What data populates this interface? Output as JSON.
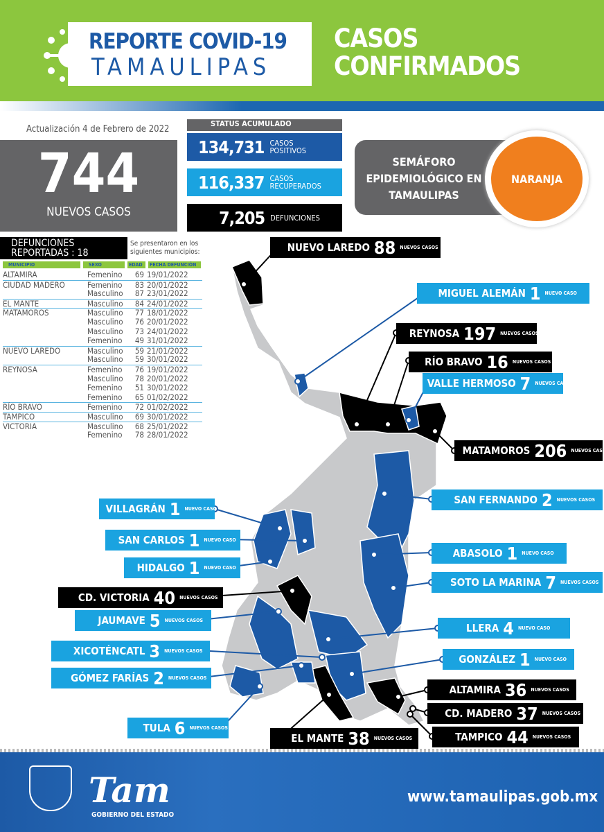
{
  "header": {
    "title_line1": "REPORTE COVID-19",
    "title_line2": "TAMAULIPAS",
    "section": "CASOS CONFIRMADOS"
  },
  "update": "Actualización 4 de Febrero de 2022",
  "new_cases": {
    "value": "744",
    "label": "NUEVOS CASOS"
  },
  "status": {
    "header": "STATUS ACUMULADO",
    "positives": {
      "value": "134,731",
      "label": "CASOS POSITIVOS"
    },
    "recovered": {
      "value": "116,337",
      "label": "CASOS RECUPERADOS"
    },
    "deaths": {
      "value": "7,205",
      "label": "DEFUNCIONES"
    }
  },
  "semaforo": {
    "label": "SEMÁFORO EPIDEMIOLÓGICO EN TAMAULIPAS",
    "level": "NARANJA",
    "color": "#f07f1e"
  },
  "deaths_table": {
    "title": "DEFUNCIONES REPORTADAS : 18",
    "note": "Se presentaron en los siguientes municipios:",
    "columns": [
      "MUNICIPIO",
      "SEXO",
      "EDAD",
      "FECHA DEFUNCIÓN"
    ],
    "rows": [
      [
        "ALTAMIRA",
        "Femenino",
        "69",
        "19/01/2022"
      ],
      [
        "CIUDAD MADERO",
        "Femenino",
        "83",
        "20/01/2022"
      ],
      [
        "",
        "Masculino",
        "87",
        "23/01/2022"
      ],
      [
        "EL MANTE",
        "Masculino",
        "84",
        "24/01/2022"
      ],
      [
        "MATAMOROS",
        "Masculino",
        "77",
        "18/01/2022"
      ],
      [
        "",
        "Masculino",
        "76",
        "20/01/2022"
      ],
      [
        "",
        "Masculino",
        "73",
        "24/01/2022"
      ],
      [
        "",
        "Femenino",
        "49",
        "31/01/2022"
      ],
      [
        "NUEVO LAREDO",
        "Masculino",
        "59",
        "21/01/2022"
      ],
      [
        "",
        "Masculino",
        "59",
        "30/01/2022"
      ],
      [
        "REYNOSA",
        "Femenino",
        "76",
        "19/01/2022"
      ],
      [
        "",
        "Masculino",
        "78",
        "20/01/2022"
      ],
      [
        "",
        "Femenino",
        "51",
        "30/01/2022"
      ],
      [
        "",
        "Femenino",
        "65",
        "01/02/2022"
      ],
      [
        "RÍO BRAVO",
        "Femenino",
        "72",
        "01/02/2022"
      ],
      [
        "TAMPICO",
        "Masculino",
        "69",
        "30/01/2022"
      ],
      [
        "VICTORIA",
        "Masculino",
        "68",
        "25/01/2022"
      ],
      [
        "",
        "Femenino",
        "78",
        "28/01/2022"
      ]
    ]
  },
  "municipalities": [
    {
      "name": "NUEVO LAREDO",
      "count": "88",
      "unit": "NUEVOS CASOS",
      "style": "black"
    },
    {
      "name": "MIGUEL ALEMÁN",
      "count": "1",
      "unit": "NUEVO CASO",
      "style": "blue"
    },
    {
      "name": "REYNOSA",
      "count": "197",
      "unit": "NUEVOS CASOS",
      "style": "black"
    },
    {
      "name": "RÍO BRAVO",
      "count": "16",
      "unit": "NUEVOS CASOS",
      "style": "black"
    },
    {
      "name": "VALLE HERMOSO",
      "count": "7",
      "unit": "NUEVOS CASOS",
      "style": "blue"
    },
    {
      "name": "MATAMOROS",
      "count": "206",
      "unit": "NUEVOS CASOS",
      "style": "black"
    },
    {
      "name": "SAN FERNANDO",
      "count": "2",
      "unit": "NUEVOS CASOS",
      "style": "blue"
    },
    {
      "name": "ABASOLO",
      "count": "1",
      "unit": "NUEVO CASO",
      "style": "blue"
    },
    {
      "name": "SOTO LA MARINA",
      "count": "7",
      "unit": "NUEVOS CASOS",
      "style": "blue"
    },
    {
      "name": "LLERA",
      "count": "4",
      "unit": "NUEVO CASO",
      "style": "blue"
    },
    {
      "name": "GONZÁLEZ",
      "count": "1",
      "unit": "NUEVO CASO",
      "style": "blue"
    },
    {
      "name": "ALTAMIRA",
      "count": "36",
      "unit": "NUEVOS CASOS",
      "style": "black"
    },
    {
      "name": "CD. MADERO",
      "count": "37",
      "unit": "NUEVOS CASOS",
      "style": "black"
    },
    {
      "name": "TAMPICO",
      "count": "44",
      "unit": "NUEVOS CASOS",
      "style": "black"
    },
    {
      "name": "EL MANTE",
      "count": "38",
      "unit": "NUEVOS CASOS",
      "style": "black"
    },
    {
      "name": "TULA",
      "count": "6",
      "unit": "NUEVOS CASOS",
      "style": "blue"
    },
    {
      "name": "GÓMEZ FARÍAS",
      "count": "2",
      "unit": "NUEVOS CASOS",
      "style": "blue"
    },
    {
      "name": "XICOTÉNCATL",
      "count": "3",
      "unit": "NUEVOS CASOS",
      "style": "blue"
    },
    {
      "name": "JAUMAVE",
      "count": "5",
      "unit": "NUEVOS CASOS",
      "style": "blue"
    },
    {
      "name": "CD. VICTORIA",
      "count": "40",
      "unit": "NUEVOS CASOS",
      "style": "black"
    },
    {
      "name": "HIDALGO",
      "count": "1",
      "unit": "NUEVO CASO",
      "style": "blue"
    },
    {
      "name": "SAN CARLOS",
      "count": "1",
      "unit": "NUEVO CASO",
      "style": "blue"
    },
    {
      "name": "VILLAGRÁN",
      "count": "1",
      "unit": "NUEVO CASO",
      "style": "blue"
    }
  ],
  "map_colors": {
    "no_cases": "#c8c9cb",
    "cases": "#1d5aa6",
    "high": "#000000"
  },
  "footer": {
    "logo": "Tam",
    "government": "GOBIERNO DEL ESTADO",
    "url": "www.tamaulipas.gob.mx"
  }
}
